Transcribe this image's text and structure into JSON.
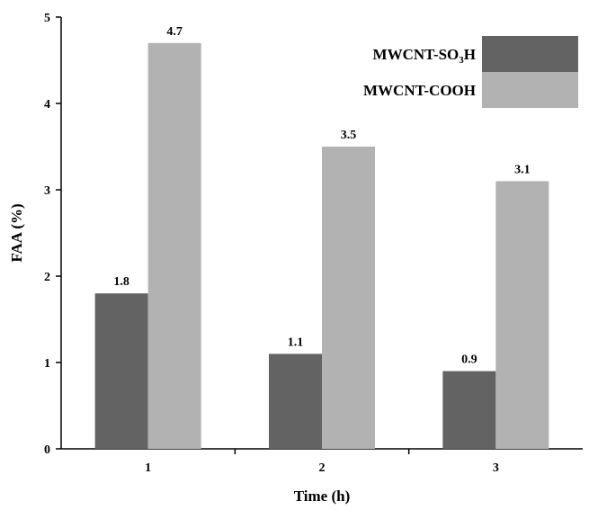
{
  "chart_data": {
    "type": "bar",
    "categories": [
      "1",
      "2",
      "3"
    ],
    "series": [
      {
        "name": "MWCNT-SO3H",
        "legend_main": "MWCNT-SO",
        "legend_sub": "3",
        "legend_tail": "H",
        "color": "#636363",
        "values": [
          1.8,
          1.1,
          0.9
        ],
        "labels": [
          "1.8",
          "1.1",
          "0.9"
        ]
      },
      {
        "name": "MWCNT-COOH",
        "legend_main": "MWCNT-COOH",
        "legend_sub": "",
        "legend_tail": "",
        "color": "#b2b2b2",
        "values": [
          4.7,
          3.5,
          3.1
        ],
        "labels": [
          "4.7",
          "3.5",
          "3.1"
        ]
      }
    ],
    "xlabel": "Time (h)",
    "ylabel": "FAA (%)",
    "ylim": [
      0,
      5
    ],
    "yticks": [
      "0",
      "1",
      "2",
      "3",
      "4",
      "5"
    ],
    "grid": false,
    "legend_position": "top-right"
  }
}
